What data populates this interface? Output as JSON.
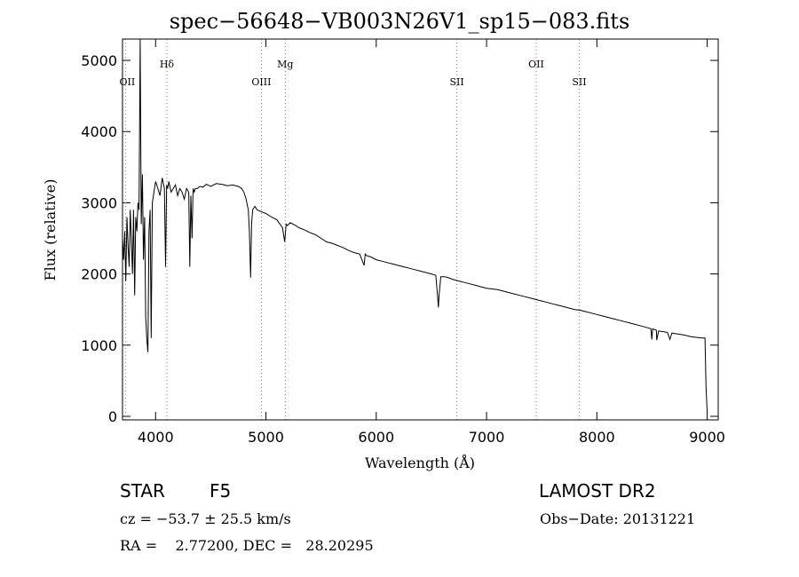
{
  "chart_data": {
    "type": "line",
    "title": "spec−56648−VB003N26V1_sp15−083.fits",
    "xlabel": "Wavelength (Å)",
    "ylabel": "Flux (relative)",
    "xlim": [
      3700,
      9100
    ],
    "ylim": [
      -50,
      5300
    ],
    "xticks": [
      4000,
      5000,
      6000,
      7000,
      8000,
      9000
    ],
    "yticks": [
      0,
      1000,
      2000,
      3000,
      4000,
      5000
    ],
    "grid": false,
    "series": [
      {
        "x": [
          3700,
          3710,
          3720,
          3730,
          3740,
          3750,
          3760,
          3770,
          3780,
          3790,
          3800,
          3810,
          3820,
          3830,
          3840,
          3850,
          3860,
          3870,
          3880,
          3890,
          3900,
          3910,
          3920,
          3930,
          3940,
          3950,
          3960,
          3970,
          3980,
          3990,
          4000,
          4020,
          4040,
          4060,
          4080,
          4090,
          4100,
          4110,
          4120,
          4140,
          4160,
          4180,
          4200,
          4220,
          4240,
          4260,
          4280,
          4300,
          4310,
          4320,
          4330,
          4340,
          4350,
          4360,
          4380,
          4400,
          4430,
          4460,
          4500,
          4550,
          4600,
          4650,
          4700,
          4750,
          4780,
          4800,
          4820,
          4840,
          4850,
          4861,
          4870,
          4880,
          4900,
          4920,
          4950,
          5000,
          5050,
          5100,
          5150,
          5170,
          5183,
          5195,
          5220,
          5270,
          5300,
          5350,
          5400,
          5450,
          5500,
          5550,
          5600,
          5650,
          5700,
          5750,
          5800,
          5850,
          5890,
          5900,
          5910,
          5950,
          6000,
          6050,
          6100,
          6150,
          6200,
          6250,
          6300,
          6350,
          6400,
          6450,
          6500,
          6540,
          6555,
          6563,
          6570,
          6585,
          6620,
          6650,
          6700,
          6750,
          6800,
          6850,
          6900,
          6950,
          7000,
          7050,
          7100,
          7150,
          7200,
          7250,
          7300,
          7350,
          7400,
          7450,
          7500,
          7550,
          7600,
          7650,
          7700,
          7750,
          7800,
          7850,
          7900,
          7950,
          8000,
          8050,
          8100,
          8150,
          8200,
          8250,
          8300,
          8350,
          8400,
          8450,
          8490,
          8498,
          8506,
          8520,
          8540,
          8542,
          8560,
          8600,
          8640,
          8662,
          8680,
          8720,
          8760,
          8800,
          8850,
          8900,
          8950,
          8980,
          8990,
          9000
        ],
        "y": [
          2500,
          2200,
          2600,
          1900,
          2800,
          2400,
          2100,
          2900,
          2500,
          2000,
          2900,
          1700,
          2800,
          2600,
          3000,
          2900,
          5300,
          2700,
          3400,
          2200,
          2800,
          1400,
          1100,
          900,
          2600,
          2900,
          1100,
          3000,
          3100,
          3200,
          3300,
          3200,
          3100,
          3350,
          3200,
          2100,
          3250,
          3200,
          3300,
          3150,
          3200,
          3250,
          3100,
          3200,
          3150,
          3050,
          3200,
          3150,
          2100,
          3100,
          2500,
          3200,
          3150,
          3200,
          3200,
          3230,
          3220,
          3260,
          3230,
          3270,
          3260,
          3240,
          3250,
          3230,
          3200,
          3150,
          3050,
          2900,
          2600,
          1950,
          2700,
          2900,
          2950,
          2900,
          2880,
          2850,
          2800,
          2760,
          2650,
          2450,
          2700,
          2680,
          2720,
          2680,
          2650,
          2620,
          2580,
          2550,
          2500,
          2450,
          2430,
          2400,
          2370,
          2330,
          2300,
          2280,
          2120,
          2280,
          2260,
          2240,
          2200,
          2180,
          2160,
          2140,
          2120,
          2100,
          2080,
          2060,
          2040,
          2020,
          2000,
          1980,
          1700,
          1530,
          1700,
          1960,
          1960,
          1950,
          1920,
          1900,
          1880,
          1860,
          1840,
          1820,
          1800,
          1790,
          1780,
          1760,
          1740,
          1720,
          1700,
          1680,
          1660,
          1640,
          1620,
          1600,
          1580,
          1560,
          1540,
          1520,
          1500,
          1490,
          1470,
          1450,
          1430,
          1410,
          1390,
          1370,
          1350,
          1330,
          1310,
          1290,
          1270,
          1250,
          1230,
          1080,
          1230,
          1220,
          1210,
          1070,
          1200,
          1190,
          1180,
          1080,
          1170,
          1160,
          1150,
          1140,
          1120,
          1110,
          1100,
          1100,
          400,
          50
        ]
      }
    ],
    "line_marks": [
      {
        "label": "OII",
        "x": 3727
      },
      {
        "label": "Hδ",
        "x": 4102
      },
      {
        "label": "OIII",
        "x": 4959
      },
      {
        "label": "Mg",
        "x": 5175
      },
      {
        "label": "SII",
        "x": 6731
      },
      {
        "label": "OII",
        "x": 7450
      },
      {
        "label": "SII",
        "x": 7840
      }
    ]
  },
  "info": {
    "object_class": "STAR",
    "subclass": "F5",
    "survey": "LAMOST DR2",
    "cz_line": "cz = −53.7 ± 25.5 km/s",
    "obs_date_line": "Obs−Date: 20131221",
    "coord_line": "RA =    2.77200, DEC =   28.20295"
  }
}
